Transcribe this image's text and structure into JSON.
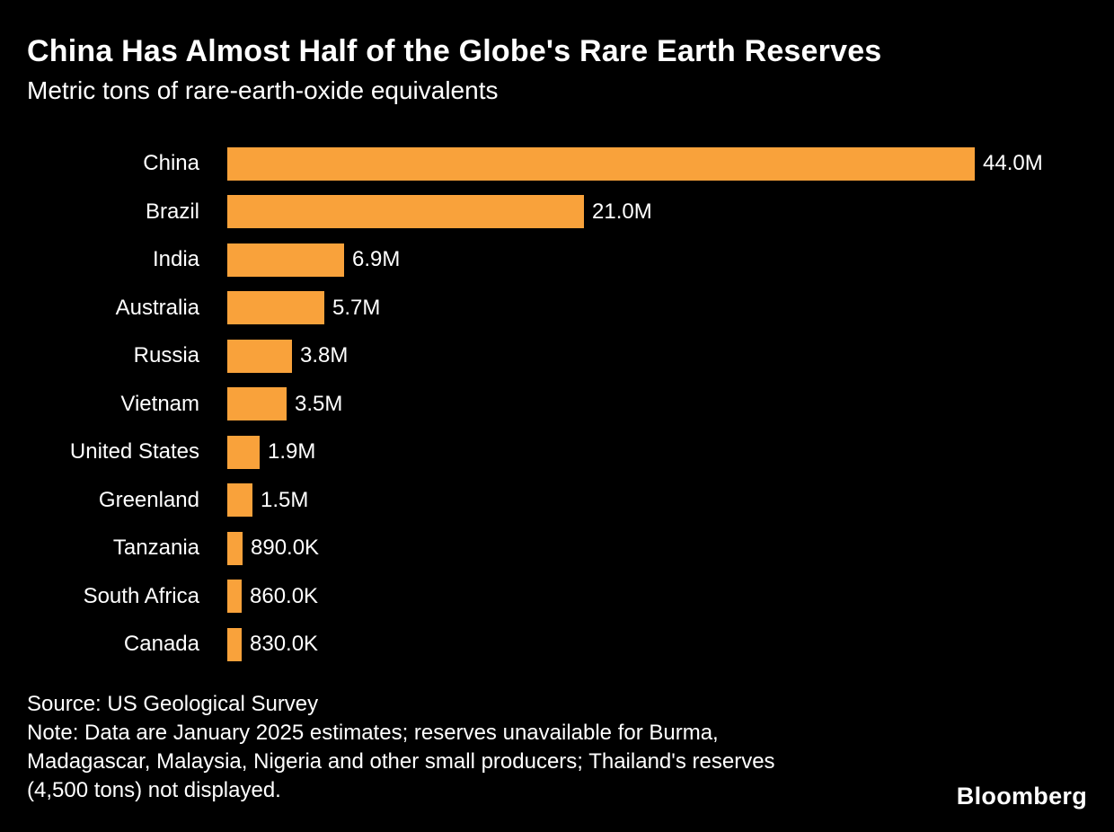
{
  "header": {
    "title": "China Has Almost Half of the Globe's Rare Earth Reserves",
    "subtitle": "Metric tons of rare-earth-oxide equivalents"
  },
  "chart_data": {
    "type": "bar",
    "orientation": "horizontal",
    "title": "China Has Almost Half of the Globe's Rare Earth Reserves",
    "subtitle": "Metric tons of rare-earth-oxide equivalents",
    "unit": "metric tons of rare-earth-oxide equivalents",
    "categories": [
      "China",
      "Brazil",
      "India",
      "Australia",
      "Russia",
      "Vietnam",
      "United States",
      "Greenland",
      "Tanzania",
      "South Africa",
      "Canada"
    ],
    "values": [
      44000000,
      21000000,
      6900000,
      5700000,
      3800000,
      3500000,
      1900000,
      1500000,
      890000,
      860000,
      830000
    ],
    "value_labels": [
      "44.0M",
      "21.0M",
      "6.9M",
      "5.7M",
      "3.8M",
      "3.5M",
      "1.9M",
      "1.5M",
      "890.0K",
      "860.0K",
      "830.0K"
    ],
    "xlim": [
      0,
      44000000
    ],
    "grid": false,
    "legend": false,
    "bar_color": "#F9A23B"
  },
  "footer": {
    "source": "Source: US Geological Survey",
    "note_lines": [
      "Note: Data are January 2025 estimates; reserves unavailable for Burma,",
      "Madagascar, Malaysia, Nigeria and other small producers; Thailand's reserves",
      "(4,500 tons) not displayed."
    ],
    "brand": "Bloomberg"
  },
  "colors": {
    "background": "#000000",
    "text": "#FFFFFF",
    "bar": "#F9A23B"
  }
}
